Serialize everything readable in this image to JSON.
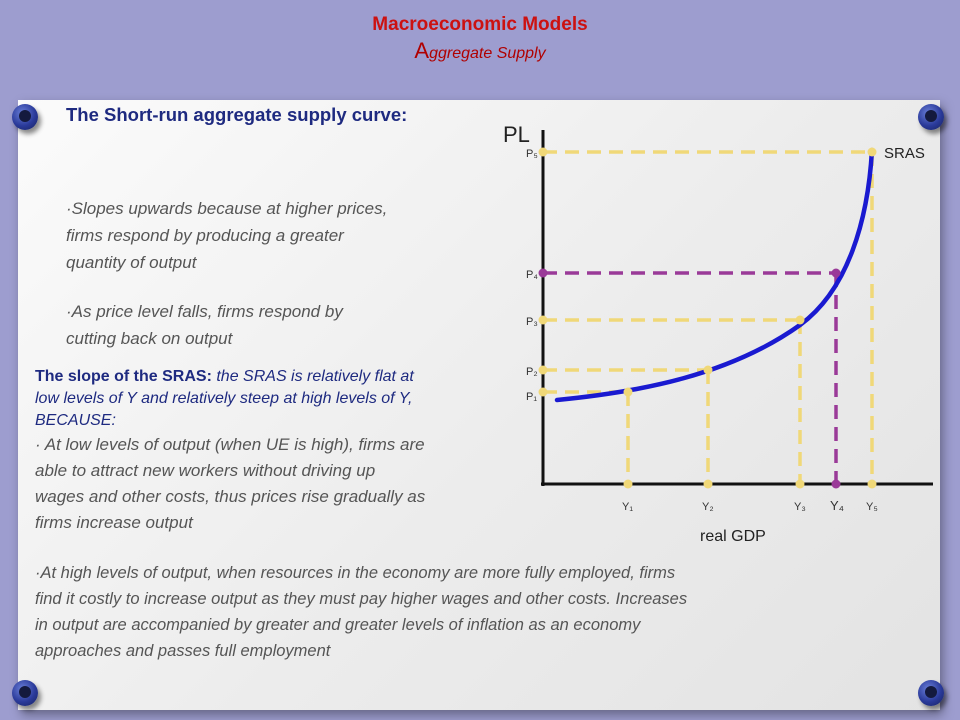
{
  "header": {
    "title": "Macroeconomic Models",
    "subtitle_first": "A",
    "subtitle_rest": "ggregate Supply"
  },
  "heading": "The Short-run aggregate supply curve:",
  "bullets": {
    "upward": [
      "·Slopes upwards because at higher prices,",
      "firms respond by producing a greater",
      "quantity of output"
    ],
    "falls": [
      "·As price level falls, firms respond by",
      "cutting back on output"
    ]
  },
  "slope": {
    "label": "The slope of the SRAS:",
    "lines": [
      " the SRAS is relatively flat at",
      "low levels of Y and relatively steep at high levels of Y,",
      "BECAUSE:"
    ]
  },
  "low_output": [
    "· At low levels of output (when UE is high), firms are",
    "able to attract new workers without driving up",
    "wages and other costs, thus prices rise gradually as",
    "firms increase output"
  ],
  "high_output": [
    "·At high levels of output, when resources in the economy are more fully employed, firms",
    "find it costly to increase output as they must pay higher wages and other costs. Increases",
    "in output are accompanied by greater and greater levels of inflation as an economy",
    "approaches and passes full employment"
  ],
  "chart_data": {
    "type": "line",
    "ylabel": "PL",
    "xlabel": "real GDP",
    "series": [
      {
        "name": "SRAS",
        "color": "#1a1ad0"
      }
    ],
    "x_ticks": [
      "Y₁",
      "Y₂",
      "Y₃",
      "Y₄",
      "Y₅"
    ],
    "y_ticks": [
      "P₁",
      "P₂",
      "P₃",
      "P₄",
      "P₅"
    ],
    "points": [
      {
        "x_label": "Y₁",
        "y_label": "P₁",
        "color": "#f0d878"
      },
      {
        "x_label": "Y₂",
        "y_label": "P₂",
        "color": "#f0d878"
      },
      {
        "x_label": "Y₃",
        "y_label": "P₃",
        "color": "#f0d878"
      },
      {
        "x_label": "Y₄",
        "y_label": "P₄",
        "color": "#9a3a98"
      },
      {
        "x_label": "Y₅",
        "y_label": "P₅",
        "color": "#f0d878"
      }
    ]
  }
}
